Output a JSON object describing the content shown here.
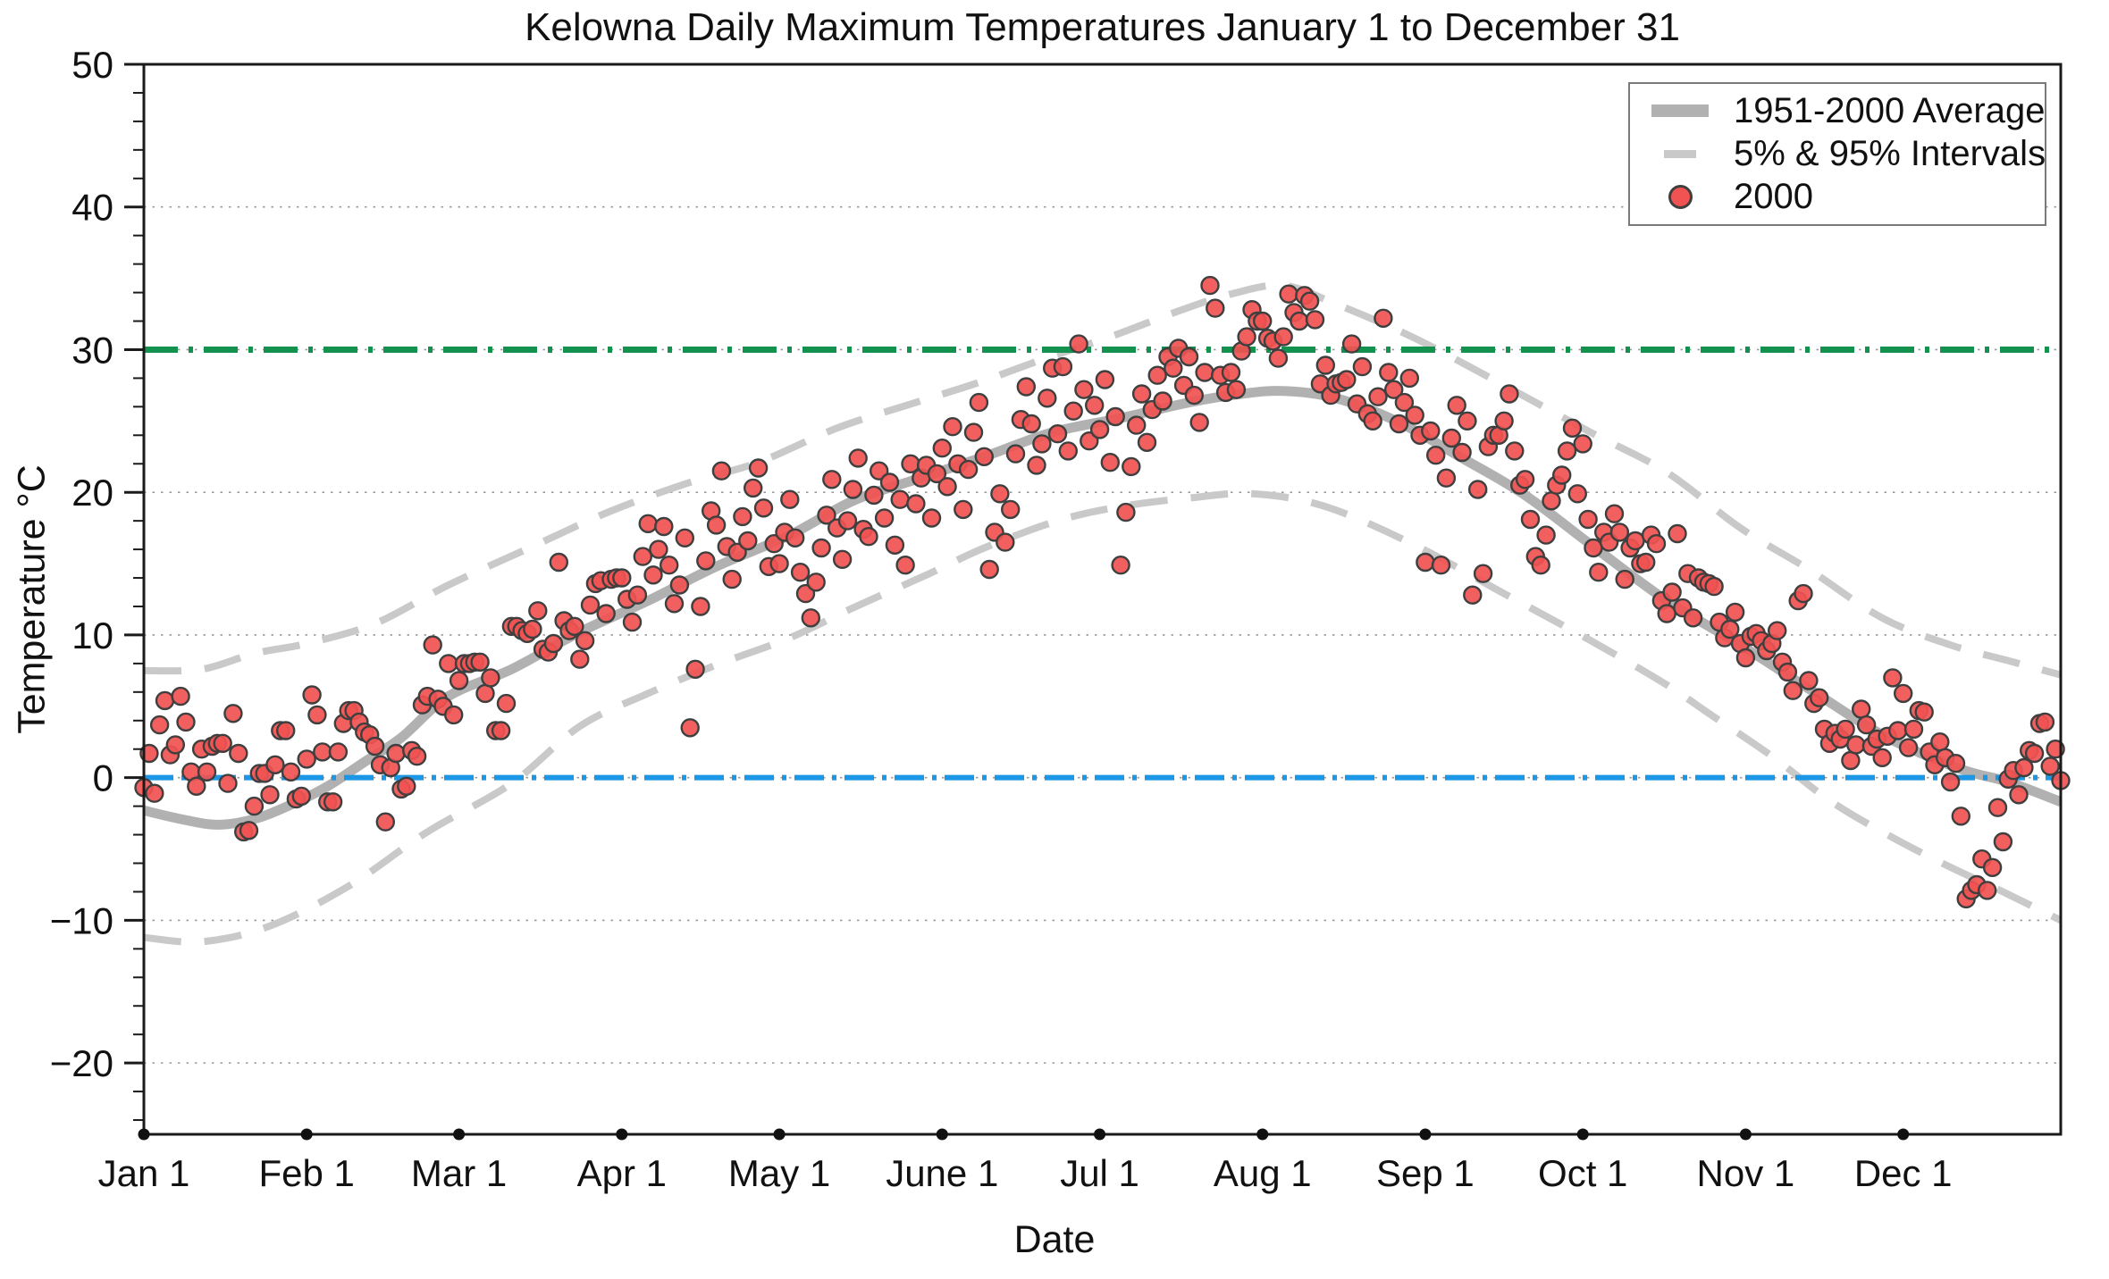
{
  "page": {
    "background": "#ffffff"
  },
  "chart_data": {
    "type": "scatter",
    "title": "Kelowna Daily Maximum Temperatures January 1 to December 31",
    "xlabel": "Date",
    "ylabel": "Temperature °C",
    "x_unit": "day_of_year",
    "x_range": [
      1,
      366
    ],
    "ylim": [
      -25,
      50
    ],
    "grid": "dotted-horizontal",
    "y_major_ticks": [
      50,
      40,
      30,
      20,
      10,
      0,
      -10,
      -20
    ],
    "y_tick_labels": [
      "50",
      "40",
      "30",
      "20",
      "10",
      "0",
      "−10",
      "−20"
    ],
    "y_minor_tick_step": 2,
    "gridlines_y": [
      -20,
      -10,
      0,
      10,
      20,
      30,
      40
    ],
    "month_ticks": [
      {
        "day": 1,
        "label": "Jan 1"
      },
      {
        "day": 32,
        "label": "Feb 1"
      },
      {
        "day": 61,
        "label": "Mar 1"
      },
      {
        "day": 92,
        "label": "Apr 1"
      },
      {
        "day": 122,
        "label": "May 1"
      },
      {
        "day": 153,
        "label": "June 1"
      },
      {
        "day": 183,
        "label": "Jul 1"
      },
      {
        "day": 214,
        "label": "Aug 1"
      },
      {
        "day": 245,
        "label": "Sep 1"
      },
      {
        "day": 275,
        "label": "Oct 1"
      },
      {
        "day": 306,
        "label": "Nov 1"
      },
      {
        "day": 336,
        "label": "Dec 1"
      }
    ],
    "reference_lines": [
      {
        "name": "30-degree-line",
        "value": 30,
        "color": "#12914f",
        "style": "dash-dot",
        "width": 7
      },
      {
        "name": "0-degree-line",
        "value": 0,
        "color": "#1b97e6",
        "style": "dash-dot",
        "width": 6
      }
    ],
    "legend": {
      "position": "top-right",
      "entries": [
        {
          "label": "1951-2000 Average",
          "swatch": "thick-gray-line",
          "color": "#b1b1b1"
        },
        {
          "label": "5% & 95% Intervals",
          "swatch": "gray-dash",
          "color": "#c9c9c9"
        },
        {
          "label": "2000",
          "swatch": "red-dot",
          "color": "#f05351"
        }
      ]
    },
    "series": [
      {
        "name": "1951-2000 Average",
        "type": "line",
        "color": "#b1b1b1",
        "width": 11,
        "points": [
          [
            1,
            -2.3
          ],
          [
            8,
            -2.9
          ],
          [
            15,
            -3.3
          ],
          [
            22,
            -2.9
          ],
          [
            29,
            -1.9
          ],
          [
            36,
            -0.6
          ],
          [
            43,
            1.1
          ],
          [
            50,
            2.8
          ],
          [
            59,
            5.7
          ],
          [
            71,
            7.6
          ],
          [
            84,
            10.2
          ],
          [
            97,
            12.4
          ],
          [
            110,
            14.8
          ],
          [
            124,
            17.0
          ],
          [
            136,
            19.4
          ],
          [
            148,
            20.9
          ],
          [
            161,
            22.5
          ],
          [
            174,
            24.2
          ],
          [
            187,
            25.2
          ],
          [
            200,
            26.3
          ],
          [
            210,
            26.9
          ],
          [
            218,
            27.1
          ],
          [
            228,
            26.6
          ],
          [
            240,
            24.9
          ],
          [
            252,
            22.4
          ],
          [
            264,
            19.8
          ],
          [
            277,
            16.2
          ],
          [
            291,
            12.4
          ],
          [
            305,
            9.3
          ],
          [
            319,
            6.0
          ],
          [
            333,
            2.8
          ],
          [
            347,
            0.6
          ],
          [
            356,
            -0.3
          ],
          [
            366,
            -1.7
          ]
        ]
      },
      {
        "name": "95% Interval",
        "type": "dashed-line",
        "color": "#c9c9c9",
        "width": 8,
        "points": [
          [
            1,
            7.5
          ],
          [
            12,
            7.6
          ],
          [
            22,
            8.7
          ],
          [
            32,
            9.4
          ],
          [
            45,
            10.8
          ],
          [
            59,
            13.5
          ],
          [
            75,
            16.2
          ],
          [
            90,
            18.7
          ],
          [
            105,
            20.7
          ],
          [
            118,
            22.1
          ],
          [
            133,
            24.5
          ],
          [
            148,
            26.3
          ],
          [
            160,
            27.7
          ],
          [
            172,
            29.3
          ],
          [
            185,
            30.9
          ],
          [
            198,
            32.7
          ],
          [
            208,
            33.9
          ],
          [
            218,
            34.5
          ],
          [
            228,
            33.2
          ],
          [
            243,
            30.8
          ],
          [
            260,
            27.5
          ],
          [
            277,
            24.1
          ],
          [
            291,
            21.4
          ],
          [
            305,
            17.5
          ],
          [
            318,
            14.6
          ],
          [
            332,
            11.2
          ],
          [
            345,
            9.3
          ],
          [
            356,
            8.2
          ],
          [
            366,
            7.2
          ]
        ]
      },
      {
        "name": "5% Interval",
        "type": "dashed-line",
        "color": "#c9c9c9",
        "width": 8,
        "points": [
          [
            1,
            -11.2
          ],
          [
            12,
            -11.5
          ],
          [
            25,
            -10.4
          ],
          [
            40,
            -7.6
          ],
          [
            55,
            -3.8
          ],
          [
            71,
            -0.4
          ],
          [
            84,
            3.6
          ],
          [
            97,
            5.9
          ],
          [
            110,
            7.9
          ],
          [
            124,
            9.8
          ],
          [
            136,
            11.9
          ],
          [
            150,
            14.2
          ],
          [
            161,
            16.1
          ],
          [
            175,
            18.0
          ],
          [
            187,
            19.0
          ],
          [
            200,
            19.6
          ],
          [
            212,
            19.9
          ],
          [
            226,
            19.0
          ],
          [
            243,
            16.3
          ],
          [
            260,
            12.9
          ],
          [
            277,
            9.5
          ],
          [
            291,
            6.5
          ],
          [
            299,
            4.5
          ],
          [
            311,
            1.5
          ],
          [
            322,
            -1.6
          ],
          [
            333,
            -4.0
          ],
          [
            344,
            -6.1
          ],
          [
            355,
            -8.0
          ],
          [
            366,
            -10.0
          ]
        ]
      },
      {
        "name": "2000",
        "type": "scatter",
        "marker_color": "#f05351",
        "marker_edge_color": "#3f3f3f",
        "marker_radius": 9.5,
        "start_day": 1,
        "daily_max_temps_c": [
          -0.7,
          1.7,
          -1.1,
          3.7,
          5.4,
          1.6,
          2.3,
          5.7,
          3.9,
          0.4,
          -0.6,
          2.0,
          0.4,
          2.2,
          2.4,
          2.4,
          -0.4,
          4.5,
          1.7,
          -3.8,
          -3.7,
          -2.0,
          0.3,
          0.3,
          -1.2,
          0.9,
          3.3,
          3.3,
          0.4,
          -1.5,
          -1.3,
          1.3,
          5.8,
          4.4,
          1.8,
          -1.7,
          -1.7,
          1.8,
          3.8,
          4.7,
          4.7,
          3.9,
          3.2,
          3.0,
          2.2,
          0.9,
          -3.1,
          0.7,
          1.7,
          -0.8,
          -0.6,
          1.9,
          1.5,
          5.1,
          5.7,
          9.3,
          5.5,
          5.0,
          8.0,
          4.4,
          6.8,
          8.0,
          8.0,
          8.1,
          8.1,
          5.9,
          7.0,
          3.3,
          3.3,
          5.2,
          10.6,
          10.6,
          10.3,
          10.1,
          10.4,
          11.7,
          9.0,
          8.8,
          9.4,
          15.1,
          11.0,
          10.3,
          10.6,
          8.3,
          9.6,
          12.1,
          13.6,
          13.8,
          11.5,
          13.9,
          14.0,
          14.0,
          12.5,
          10.9,
          12.8,
          15.5,
          17.8,
          14.2,
          16.0,
          17.6,
          14.9,
          12.2,
          13.5,
          16.8,
          3.5,
          7.6,
          12.0,
          15.2,
          18.7,
          17.7,
          21.5,
          16.2,
          13.9,
          15.8,
          18.3,
          16.6,
          20.3,
          21.7,
          18.9,
          14.8,
          16.4,
          15.0,
          17.2,
          19.5,
          16.8,
          14.4,
          12.9,
          11.2,
          13.7,
          16.1,
          18.4,
          20.9,
          17.5,
          15.3,
          18.0,
          20.2,
          22.4,
          17.4,
          16.9,
          19.8,
          21.5,
          18.2,
          20.7,
          16.3,
          19.5,
          14.9,
          22.0,
          19.2,
          21.0,
          21.9,
          18.2,
          21.3,
          23.1,
          20.4,
          24.6,
          22.0,
          18.8,
          21.6,
          24.2,
          26.3,
          22.5,
          14.6,
          17.2,
          19.9,
          16.5,
          18.8,
          22.7,
          25.1,
          27.4,
          24.8,
          21.9,
          23.4,
          26.6,
          28.7,
          24.1,
          28.8,
          22.9,
          25.7,
          30.4,
          27.2,
          23.6,
          26.1,
          24.4,
          27.9,
          22.1,
          25.3,
          14.9,
          18.6,
          21.8,
          24.7,
          26.9,
          23.5,
          25.8,
          28.2,
          26.4,
          29.5,
          28.7,
          30.1,
          27.5,
          29.5,
          26.8,
          24.9,
          28.4,
          34.5,
          32.9,
          28.2,
          27.0,
          28.4,
          27.2,
          29.9,
          30.9,
          32.8,
          32.0,
          32.0,
          30.8,
          30.6,
          29.4,
          30.9,
          33.9,
          32.6,
          32.0,
          33.8,
          33.4,
          32.1,
          27.6,
          28.9,
          26.8,
          27.6,
          27.7,
          27.9,
          30.4,
          26.2,
          28.8,
          25.5,
          25.0,
          26.7,
          32.2,
          28.4,
          27.2,
          24.8,
          26.3,
          28.0,
          25.4,
          24.0,
          15.1,
          24.3,
          22.6,
          14.9,
          21.0,
          23.8,
          26.1,
          22.8,
          25.0,
          12.8,
          20.2,
          14.3,
          23.2,
          24.0,
          24.0,
          25.0,
          26.9,
          22.9,
          20.5,
          20.9,
          18.1,
          15.5,
          14.9,
          17.0,
          19.4,
          20.5,
          21.2,
          22.9,
          24.5,
          19.9,
          23.4,
          18.1,
          16.1,
          14.4,
          17.2,
          16.5,
          18.5,
          17.2,
          13.9,
          16.1,
          16.6,
          15.0,
          15.1,
          17.0,
          16.4,
          12.4,
          11.5,
          13.0,
          17.1,
          11.9,
          14.3,
          11.2,
          14.0,
          13.7,
          13.6,
          13.4,
          10.9,
          9.8,
          10.4,
          11.6,
          9.4,
          8.4,
          9.9,
          10.1,
          9.6,
          8.9,
          9.4,
          10.3,
          8.1,
          7.4,
          6.1,
          12.4,
          12.9,
          6.8,
          5.2,
          5.6,
          3.4,
          2.4,
          3.1,
          2.7,
          3.4,
          1.2,
          2.3,
          4.8,
          3.7,
          2.2,
          2.7,
          1.4,
          2.9,
          7.0,
          3.3,
          5.9,
          2.1,
          3.4,
          4.7,
          4.6,
          1.8,
          0.9,
          2.5,
          1.4,
          -0.3,
          1.0,
          -2.7,
          -8.5,
          -7.9,
          -7.5,
          -5.7,
          -7.9,
          -6.3,
          -2.1,
          -4.5,
          -0.1,
          0.5,
          -1.2,
          0.7,
          1.9,
          1.7,
          3.8,
          3.9,
          0.8,
          2.0,
          -0.2
        ]
      }
    ],
    "style": {
      "spine_color": "#1a1a1a",
      "grid_color": "#9a9a9a",
      "text_color": "#111111",
      "month_dot_color": "#111111"
    }
  }
}
